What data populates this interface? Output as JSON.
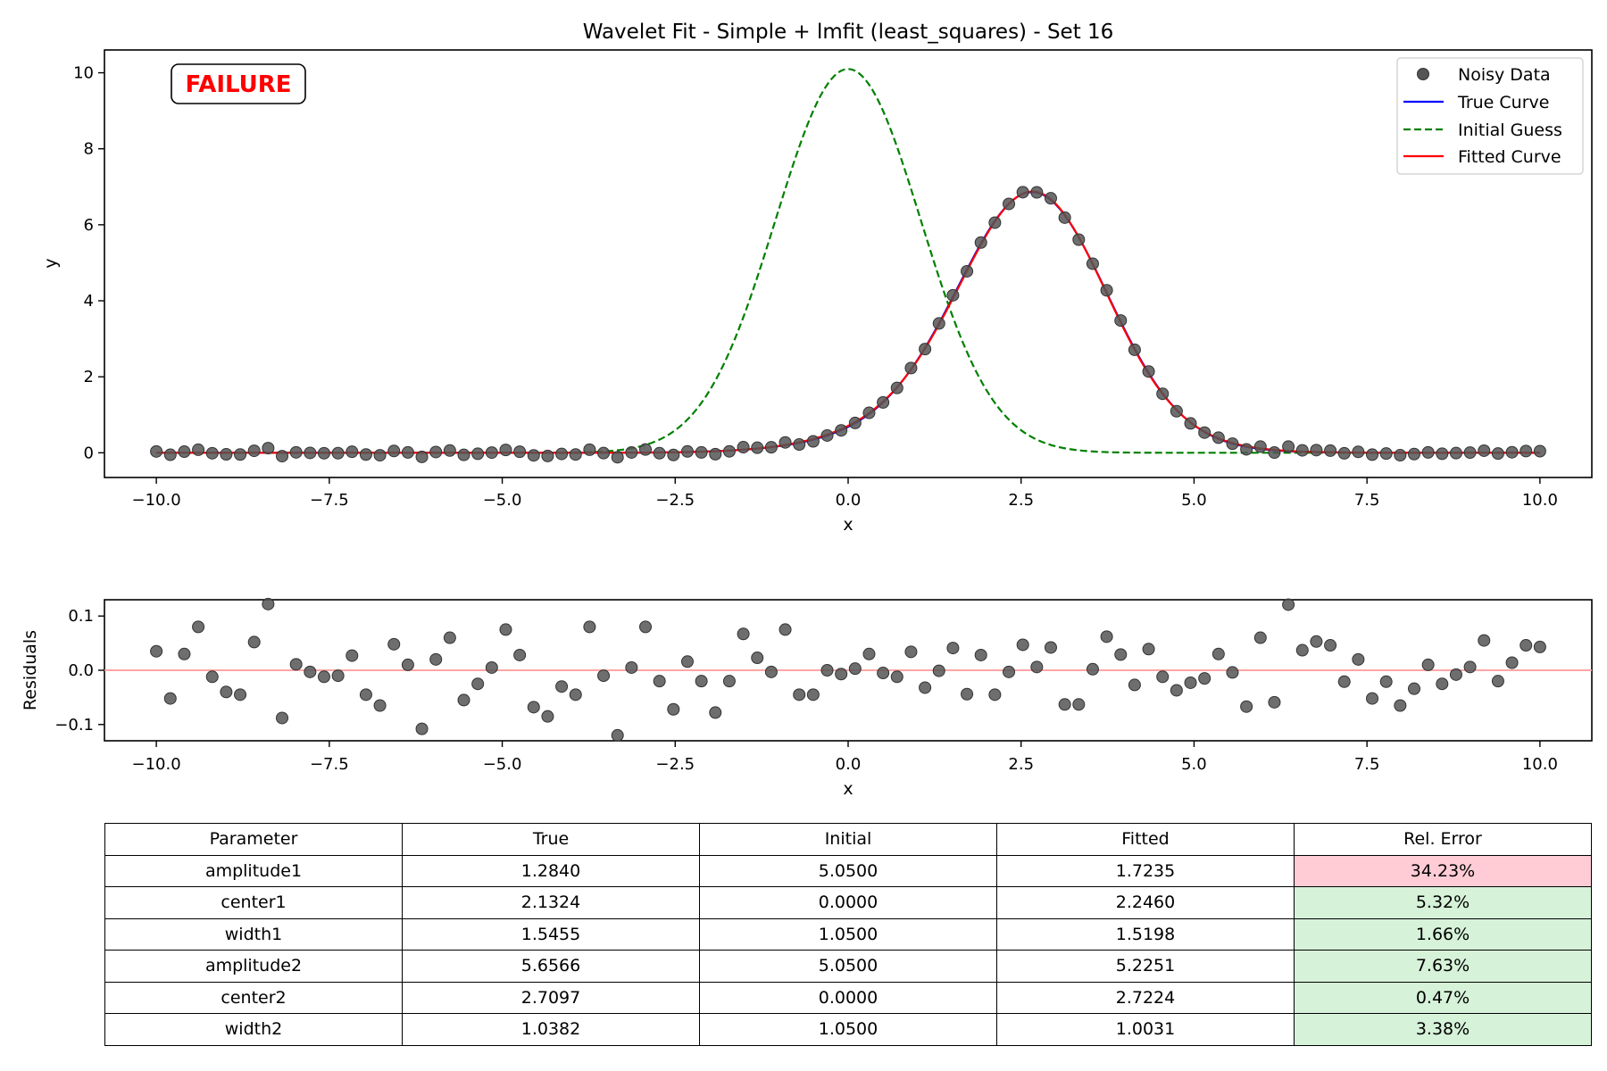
{
  "chart_data": [
    {
      "type": "line",
      "title": "Wavelet Fit - Simple + lmfit (least_squares) - Set 16",
      "xlabel": "x",
      "ylabel": "y",
      "xlim": [
        -10.75,
        10.75
      ],
      "ylim": [
        -0.65,
        10.6
      ],
      "xticks": [
        -10.0,
        -7.5,
        -5.0,
        -2.5,
        0.0,
        2.5,
        5.0,
        7.5,
        10.0
      ],
      "xtick_labels": [
        "−10.0",
        "−7.5",
        "−5.0",
        "−2.5",
        "0.0",
        "2.5",
        "5.0",
        "7.5",
        "10.0"
      ],
      "yticks": [
        0,
        2,
        4,
        6,
        8,
        10
      ],
      "ytick_labels": [
        "0",
        "2",
        "4",
        "6",
        "8",
        "10"
      ],
      "grid": false,
      "legend_position": "top-right",
      "annotation": "FAILURE",
      "annotation_color": "#ff0000",
      "series": [
        {
          "name": "Noisy Data",
          "kind": "scatter",
          "color": "#555555",
          "x_range": [
            -10,
            10
          ],
          "n_points": 100,
          "residuals": [
            0.035,
            -0.052,
            0.03,
            0.08,
            -0.012,
            -0.04,
            -0.045,
            0.052,
            0.122,
            -0.088,
            0.011,
            -0.003,
            -0.012,
            -0.01,
            0.027,
            -0.045,
            -0.065,
            0.048,
            0.01,
            -0.108,
            0.02,
            0.06,
            -0.055,
            -0.025,
            0.005,
            0.075,
            0.028,
            -0.068,
            -0.085,
            -0.03,
            -0.045,
            0.08,
            -0.01,
            -0.12,
            0.005,
            0.08,
            -0.02,
            -0.072,
            0.016,
            -0.02,
            -0.078,
            -0.02,
            0.067,
            0.023,
            -0.003,
            0.075,
            -0.045,
            -0.045,
            0.0,
            -0.007,
            0.003,
            0.03,
            -0.005,
            -0.012,
            0.034,
            -0.032,
            -0.001,
            0.041,
            -0.044,
            0.028,
            -0.045,
            -0.003,
            0.047,
            0.006,
            0.042,
            -0.063,
            -0.063,
            0.002,
            0.062,
            0.029,
            -0.027,
            0.039,
            -0.012,
            -0.037,
            -0.023,
            -0.015,
            0.03,
            -0.004,
            -0.067,
            0.06,
            -0.059,
            0.121,
            0.037,
            0.053,
            0.046,
            -0.021,
            0.02,
            -0.052,
            -0.021,
            -0.065,
            -0.034,
            0.01,
            -0.025,
            -0.008,
            0.006,
            0.055,
            -0.02,
            0.014,
            0.046,
            0.043
          ]
        },
        {
          "name": "True Curve",
          "kind": "line",
          "color": "#0000ff",
          "model": "gaussian_sum",
          "params": {
            "amplitude1": 1.284,
            "center1": 2.1324,
            "width1": 1.5455,
            "amplitude2": 5.6566,
            "center2": 2.7097,
            "width2": 1.0382
          }
        },
        {
          "name": "Initial Guess",
          "kind": "dashed-line",
          "color": "#008000",
          "model": "gaussian_sum",
          "params": {
            "amplitude1": 5.05,
            "center1": 0.0,
            "width1": 1.05,
            "amplitude2": 5.05,
            "center2": 0.0,
            "width2": 1.05
          }
        },
        {
          "name": "Fitted Curve",
          "kind": "line",
          "color": "#ff0000",
          "model": "gaussian_sum",
          "params": {
            "amplitude1": 1.7235,
            "center1": 2.246,
            "width1": 1.5198,
            "amplitude2": 5.2251,
            "center2": 2.7224,
            "width2": 1.0031
          }
        }
      ]
    },
    {
      "type": "scatter",
      "title": "",
      "xlabel": "x",
      "ylabel": "Residuals",
      "xlim": [
        -10.75,
        10.75
      ],
      "ylim": [
        -0.13,
        0.13
      ],
      "xticks": [
        -10.0,
        -7.5,
        -5.0,
        -2.5,
        0.0,
        2.5,
        5.0,
        7.5,
        10.0
      ],
      "xtick_labels": [
        "−10.0",
        "−7.5",
        "−5.0",
        "−2.5",
        "0.0",
        "2.5",
        "5.0",
        "7.5",
        "10.0"
      ],
      "yticks": [
        -0.1,
        0.0,
        0.1
      ],
      "ytick_labels": [
        "−0.1",
        "0.0",
        "0.1"
      ],
      "grid": false,
      "reference_line": {
        "y": 0,
        "color": "#ff9999"
      },
      "series_ref": "Noisy Data residuals",
      "point_color": "#555555"
    },
    {
      "type": "table",
      "columns": [
        "Parameter",
        "True",
        "Initial",
        "Fitted",
        "Rel. Error"
      ],
      "rows": [
        {
          "parameter": "amplitude1",
          "true": "1.2840",
          "initial": "5.0500",
          "fitted": "1.7235",
          "rel_error": "34.23%",
          "status": "bad"
        },
        {
          "parameter": "center1",
          "true": "2.1324",
          "initial": "0.0000",
          "fitted": "2.2460",
          "rel_error": "5.32%",
          "status": "good"
        },
        {
          "parameter": "width1",
          "true": "1.5455",
          "initial": "1.0500",
          "fitted": "1.5198",
          "rel_error": "1.66%",
          "status": "good"
        },
        {
          "parameter": "amplitude2",
          "true": "5.6566",
          "initial": "5.0500",
          "fitted": "5.2251",
          "rel_error": "7.63%",
          "status": "good"
        },
        {
          "parameter": "center2",
          "true": "2.7097",
          "initial": "0.0000",
          "fitted": "2.7224",
          "rel_error": "0.47%",
          "status": "good"
        },
        {
          "parameter": "width2",
          "true": "1.0382",
          "initial": "1.0500",
          "fitted": "1.0031",
          "rel_error": "3.38%",
          "status": "good"
        }
      ],
      "status_colors": {
        "bad": "#ffccd5",
        "good": "#d6f2d9"
      }
    }
  ]
}
